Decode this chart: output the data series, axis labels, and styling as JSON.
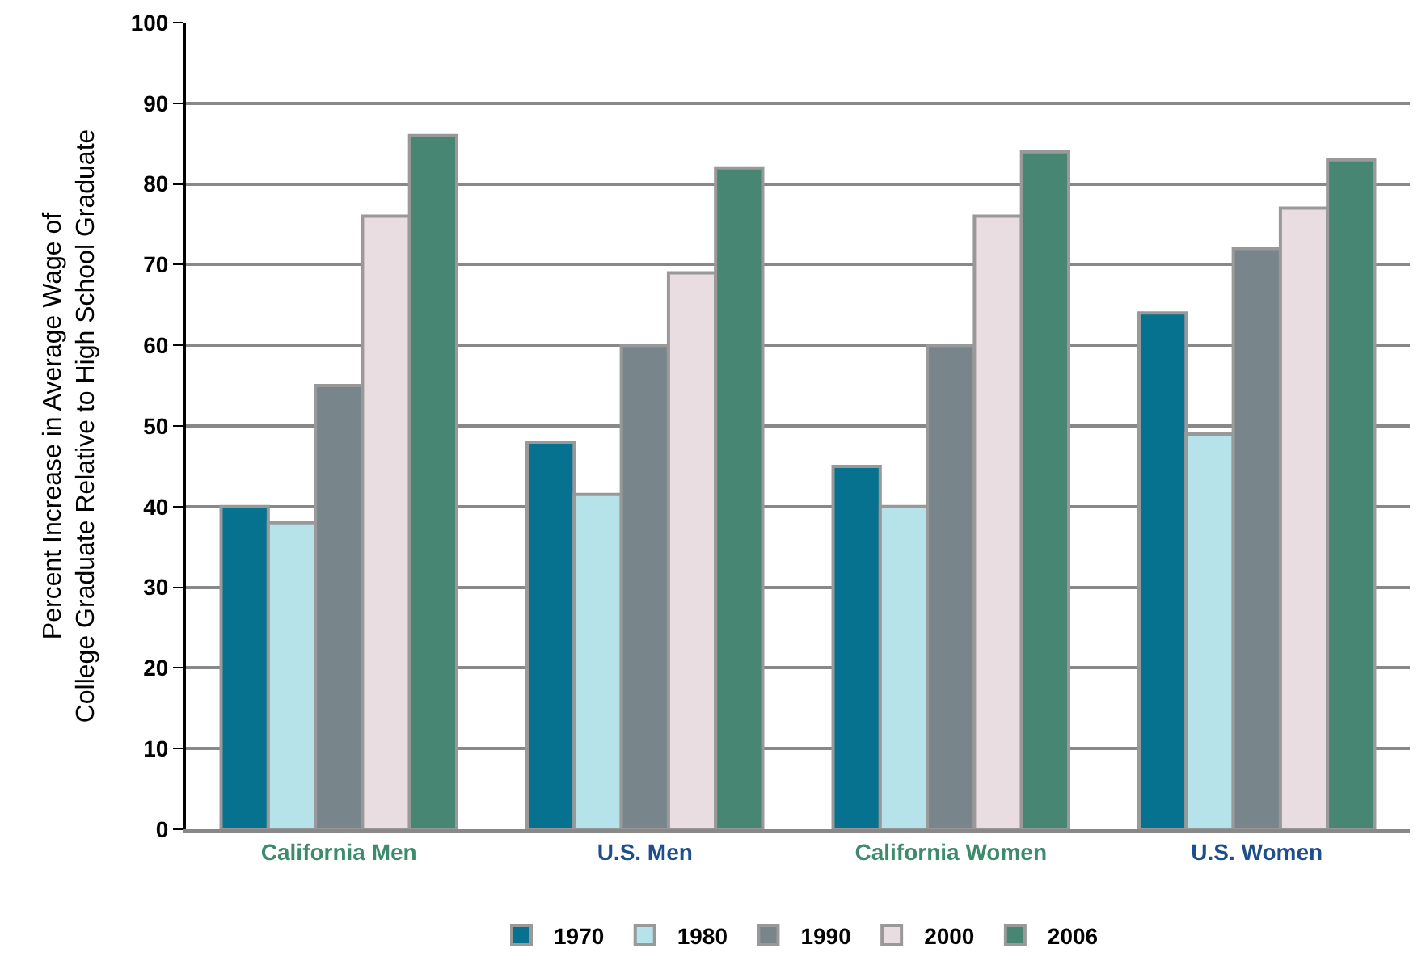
{
  "chart_data": {
    "type": "bar",
    "ylabel": "Percent Increase in Average Wage of\nCollege Graduate Relative to High School Graduate",
    "categories": [
      "California Men",
      "U.S. Men",
      "California Women",
      "U.S. Women"
    ],
    "series": [
      {
        "name": "1970",
        "color": "#077190",
        "values": [
          40,
          48,
          45,
          64
        ]
      },
      {
        "name": "1980",
        "color": "#b6e3ea",
        "values": [
          38,
          41.5,
          40,
          49
        ]
      },
      {
        "name": "1990",
        "color": "#78868c",
        "values": [
          55,
          60,
          60,
          72
        ]
      },
      {
        "name": "2000",
        "color": "#e9dde2",
        "values": [
          76,
          69,
          76,
          77
        ]
      },
      {
        "name": "2006",
        "color": "#468672",
        "values": [
          86,
          82,
          84,
          83
        ]
      }
    ],
    "ylim": [
      0,
      100
    ],
    "yticks": [
      0,
      10,
      20,
      30,
      40,
      50,
      60,
      70,
      80,
      90,
      100
    ],
    "grid": "y",
    "legend": "bottom"
  }
}
